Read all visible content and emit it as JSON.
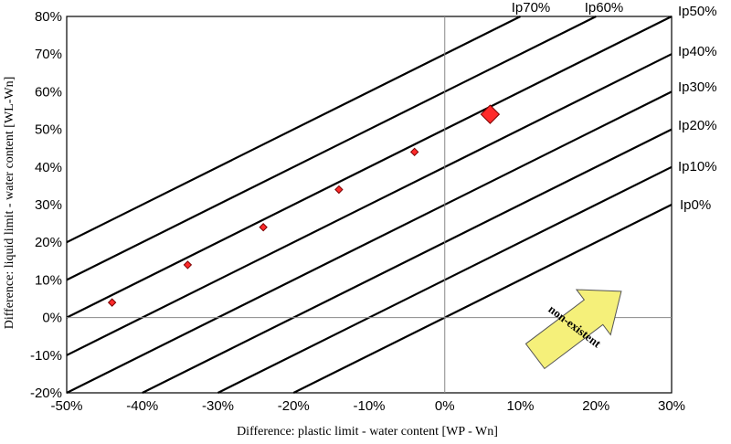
{
  "chart_data": {
    "type": "scatter",
    "title": "",
    "xlabel": "Difference: plastic limit - water content [WP - Wn]",
    "ylabel": "Difference: liquid limit - water content [WL-Wn]",
    "xlim": [
      -0.5,
      0.3
    ],
    "ylim": [
      -0.2,
      0.8
    ],
    "x_ticks": [
      -0.5,
      -0.4,
      -0.3,
      -0.2,
      -0.1,
      0,
      0.1,
      0.2,
      0.3
    ],
    "x_tick_labels": [
      "-50%",
      "-40%",
      "-30%",
      "-20%",
      "-10%",
      "0%",
      "10%",
      "20%",
      "30%"
    ],
    "y_ticks": [
      -0.2,
      -0.1,
      0,
      0.1,
      0.2,
      0.3,
      0.4,
      0.5,
      0.6,
      0.7,
      0.8
    ],
    "y_tick_labels": [
      "-20%",
      "-10%",
      "0%",
      "10%",
      "20%",
      "30%",
      "40%",
      "50%",
      "60%",
      "70%",
      "80%"
    ],
    "grid": false,
    "reference_lines": [
      {
        "label": "Ip0%",
        "intercept": 0.0
      },
      {
        "label": "Ip10%",
        "intercept": 0.1
      },
      {
        "label": "Ip20%",
        "intercept": 0.2
      },
      {
        "label": "Ip30%",
        "intercept": 0.3
      },
      {
        "label": "Ip40%",
        "intercept": 0.4
      },
      {
        "label": "Ip50%",
        "intercept": 0.5
      },
      {
        "label": "Ip60%",
        "intercept": 0.6
      },
      {
        "label": "Ip70%",
        "intercept": 0.7
      }
    ],
    "points": [
      {
        "x": -0.44,
        "y": 0.04,
        "size": "small"
      },
      {
        "x": -0.34,
        "y": 0.14,
        "size": "small"
      },
      {
        "x": -0.24,
        "y": 0.24,
        "size": "small"
      },
      {
        "x": -0.14,
        "y": 0.34,
        "size": "small"
      },
      {
        "x": -0.04,
        "y": 0.44,
        "size": "small"
      },
      {
        "x": 0.06,
        "y": 0.54,
        "size": "large"
      }
    ],
    "marker_color": "#ff2a2a",
    "line_color": "#000000",
    "annotation": {
      "text": "non-existent",
      "color": "#f5f07a"
    }
  }
}
